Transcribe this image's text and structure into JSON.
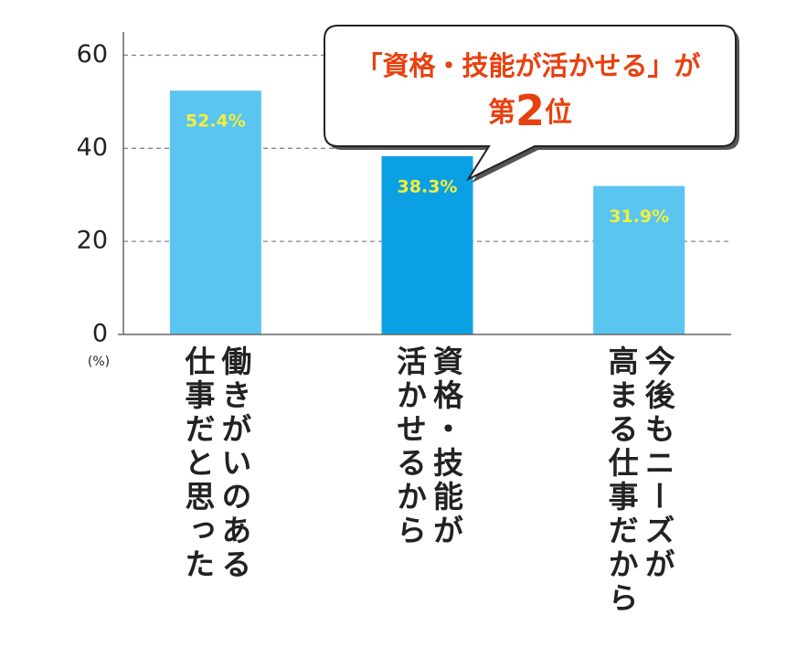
{
  "chart_data": {
    "type": "bar",
    "categories": [
      [
        "働きがいのある",
        "仕事だと思った"
      ],
      [
        "資格・技能が",
        "活かせるから"
      ],
      [
        "今後もニーズが",
        "高まる仕事だから"
      ]
    ],
    "values": [
      52.4,
      38.3,
      31.9
    ],
    "value_labels": [
      "52.4%",
      "38.3%",
      "31.9%"
    ],
    "colors": [
      "#5bc5f1",
      "#0ba0e3",
      "#5bc5f1"
    ],
    "value_label_color": "#f3ef3a",
    "y_label": "(%)",
    "ylim": [
      0,
      65
    ],
    "yticks": [
      0,
      20,
      40,
      60
    ],
    "grid": true,
    "annotation": {
      "text": "「資格・技能が活かせる」が",
      "rank": [
        "第",
        "2",
        "位"
      ],
      "color": "#e8400f"
    }
  }
}
